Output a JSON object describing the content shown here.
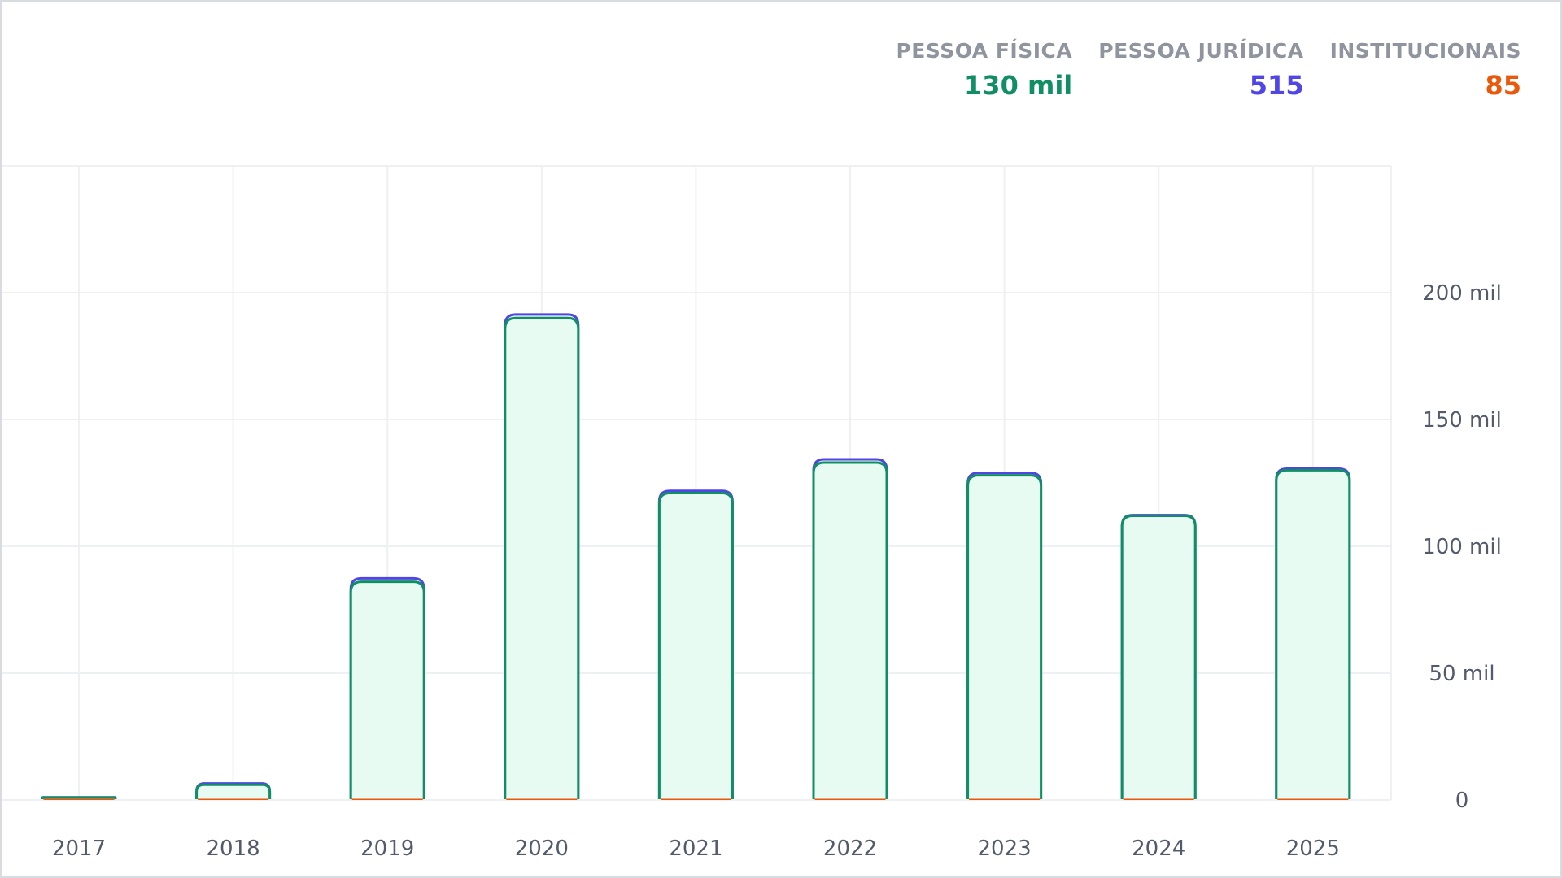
{
  "legend": [
    {
      "label": "PESSOA FÍSICA",
      "value": "130 mil",
      "color": "#0f8f63"
    },
    {
      "label": "PESSOA JURÍDICA",
      "value": "515",
      "color": "#4f46e5"
    },
    {
      "label": "INSTITUCIONAIS",
      "value": "85",
      "color": "#ea580c"
    }
  ],
  "chart_data": {
    "type": "bar",
    "stacked": true,
    "categories": [
      "2017",
      "2018",
      "2019",
      "2020",
      "2021",
      "2022",
      "2023",
      "2024",
      "2025"
    ],
    "series": [
      {
        "name": "PESSOA FÍSICA",
        "color": "#0f8f63",
        "fill": "#e8fbf2",
        "values": [
          1000,
          6000,
          86000,
          190000,
          121000,
          133000,
          128000,
          112000,
          130000
        ]
      },
      {
        "name": "PESSOA JURÍDICA",
        "color": "#4f46e5",
        "values": [
          50,
          500,
          1300,
          1300,
          800,
          1200,
          900,
          200,
          515
        ]
      },
      {
        "name": "INSTITUCIONAIS",
        "color": "#ea580c",
        "values": [
          5,
          20,
          60,
          90,
          80,
          90,
          85,
          80,
          85
        ]
      }
    ],
    "yticks": [
      {
        "value": 0,
        "label": "0"
      },
      {
        "value": 50000,
        "label": "50 mil"
      },
      {
        "value": 100000,
        "label": "100 mil"
      },
      {
        "value": 150000,
        "label": "150 mil"
      },
      {
        "value": 200000,
        "label": "200 mil"
      }
    ],
    "ylim": [
      0,
      250000
    ],
    "y_axis_position": "right",
    "grid": true,
    "legend_position": "top-right"
  }
}
